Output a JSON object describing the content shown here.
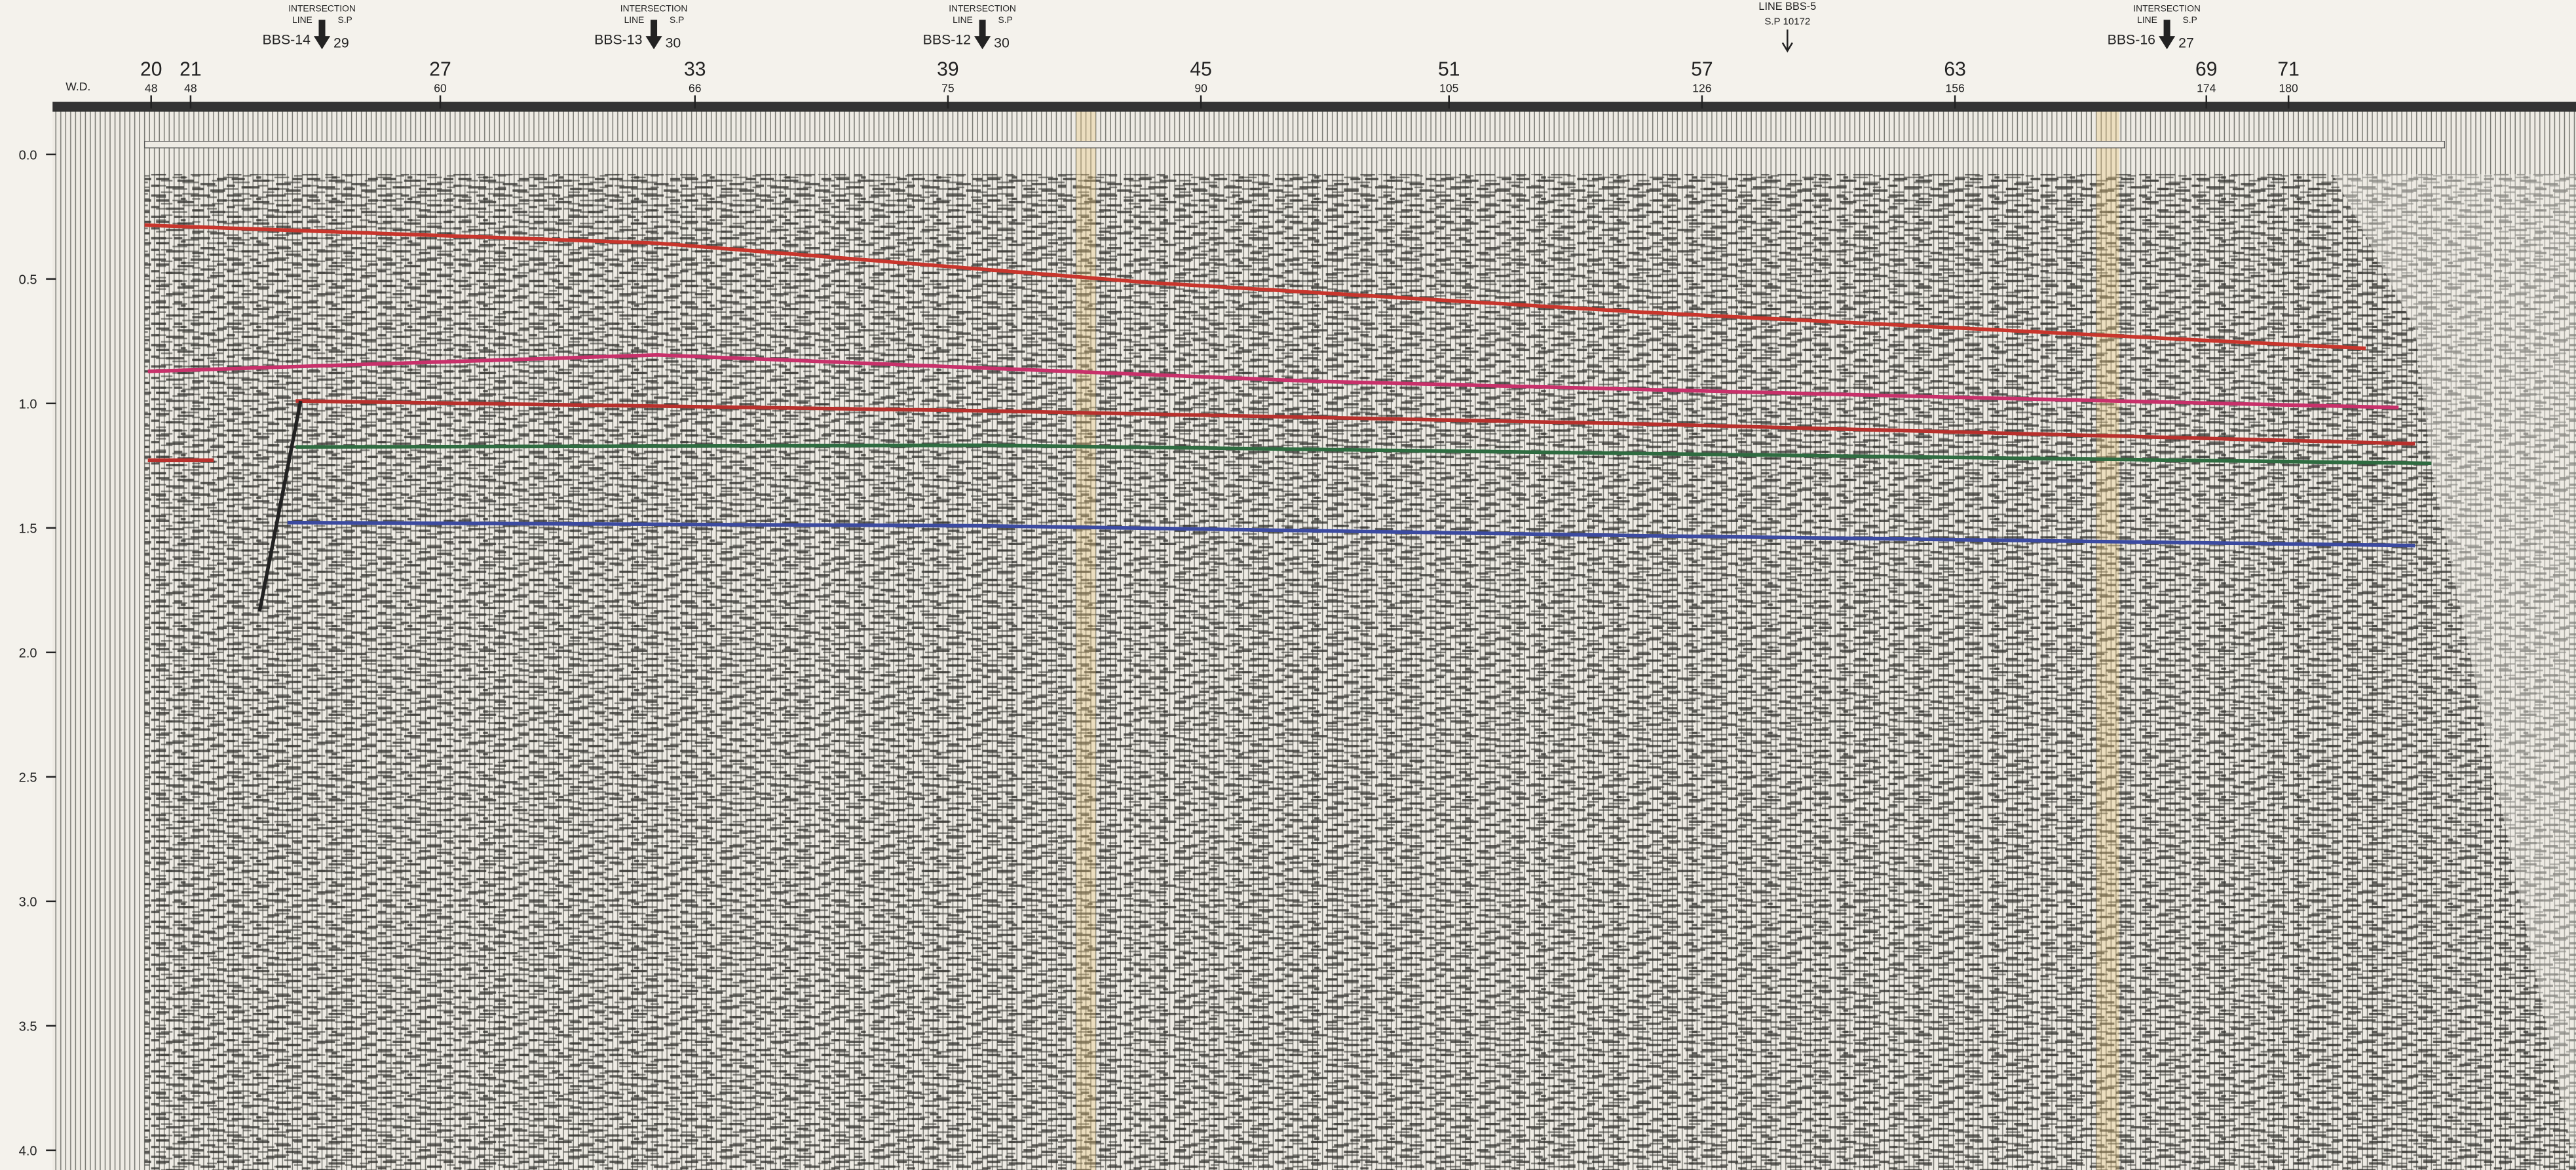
{
  "header": {
    "wd_label": "W.D.",
    "intersections": [
      {
        "title": "INTERSECTION",
        "line": "LINE",
        "sp": "S.P",
        "name": "BBS-14",
        "sp_value": "29"
      },
      {
        "title": "INTERSECTION",
        "line": "LINE",
        "sp": "S.P",
        "name": "BBS-13",
        "sp_value": "30"
      },
      {
        "title": "INTERSECTION",
        "line": "LINE",
        "sp": "S.P",
        "name": "BBS-12",
        "sp_value": "30"
      },
      {
        "title": "INTERSECTION",
        "line": "LINE",
        "sp": "S.P",
        "name": "BBS-16",
        "sp_value": "27"
      }
    ],
    "crossing": {
      "line": "LINE BBS-5",
      "sp": "S.P 10172"
    }
  },
  "top_axis": {
    "ticks": [
      {
        "label": "20",
        "sub": "48"
      },
      {
        "label": "21",
        "sub": "48"
      },
      {
        "label": "27",
        "sub": "60"
      },
      {
        "label": "33",
        "sub": "66"
      },
      {
        "label": "39",
        "sub": "75"
      },
      {
        "label": "45",
        "sub": "90"
      },
      {
        "label": "51",
        "sub": "105"
      },
      {
        "label": "57",
        "sub": "126"
      },
      {
        "label": "63",
        "sub": "156"
      },
      {
        "label": "69",
        "sub": "174"
      },
      {
        "label": "71",
        "sub": "180"
      }
    ]
  },
  "time_axis": {
    "ticks": [
      "0.0",
      "0.5",
      "1.0",
      "1.5",
      "2.0",
      "2.5",
      "3.0",
      "3.5",
      "4.0"
    ]
  }
}
